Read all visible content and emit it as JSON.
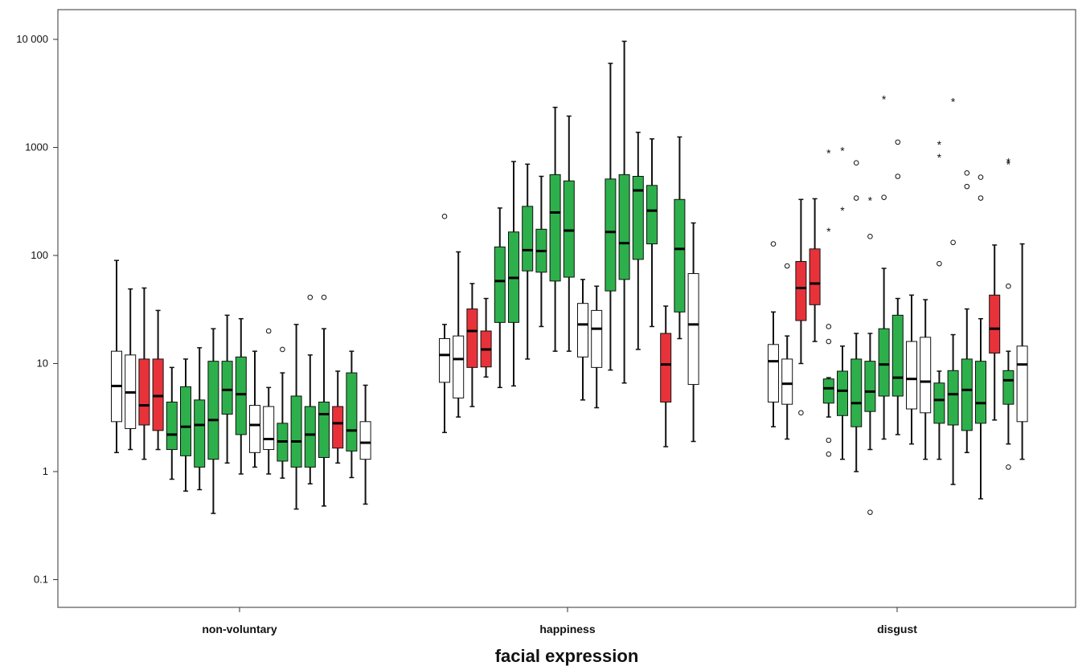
{
  "chart_data": {
    "type": "box",
    "xlabel": "facial expression",
    "ylabel": "",
    "yscale": "log",
    "ylim": [
      0.06,
      13000
    ],
    "y_ticks": [
      "0.1",
      "1",
      "10",
      "100",
      "1000",
      "10 000"
    ],
    "y_tick_values": [
      0.1,
      1,
      10,
      100,
      1000,
      10000
    ],
    "categories": [
      "non-voluntary",
      "happiness",
      "disgust"
    ],
    "colors": {
      "white": "#ffffff",
      "red": "#e8323a",
      "green": "#2db04b"
    },
    "groups": [
      {
        "category": "non-voluntary",
        "boxes": [
          {
            "color": "white",
            "min": 1.5,
            "q1": 2.9,
            "median": 6.2,
            "q3": 13,
            "max": 90,
            "outliers": []
          },
          {
            "color": "white",
            "min": 1.6,
            "q1": 2.5,
            "median": 5.4,
            "q3": 12,
            "max": 49,
            "outliers": []
          },
          {
            "color": "red",
            "min": 1.3,
            "q1": 2.7,
            "median": 4.1,
            "q3": 11,
            "max": 50,
            "outliers": []
          },
          {
            "color": "red",
            "min": 1.6,
            "q1": 2.4,
            "median": 5.0,
            "q3": 11,
            "max": 31,
            "outliers": []
          },
          {
            "color": "green",
            "min": 0.85,
            "q1": 1.6,
            "median": 2.2,
            "q3": 4.4,
            "max": 9.2,
            "outliers": []
          },
          {
            "color": "green",
            "min": 0.66,
            "q1": 1.4,
            "median": 2.6,
            "q3": 6.1,
            "max": 11,
            "outliers": []
          },
          {
            "color": "green",
            "min": 0.68,
            "q1": 1.1,
            "median": 2.7,
            "q3": 4.6,
            "max": 14,
            "outliers": []
          },
          {
            "color": "green",
            "min": 0.41,
            "q1": 1.3,
            "median": 3.0,
            "q3": 10.5,
            "max": 21,
            "outliers": []
          },
          {
            "color": "green",
            "min": 1.2,
            "q1": 3.4,
            "median": 5.7,
            "q3": 10.5,
            "max": 28,
            "outliers": []
          },
          {
            "color": "green",
            "min": 0.95,
            "q1": 2.2,
            "median": 5.2,
            "q3": 11.5,
            "max": 26,
            "outliers": []
          },
          {
            "color": "white",
            "min": 1.1,
            "q1": 1.5,
            "median": 2.7,
            "q3": 4.1,
            "max": 13,
            "outliers": []
          },
          {
            "color": "white",
            "min": 0.95,
            "q1": 1.6,
            "median": 2.0,
            "q3": 4.0,
            "max": 6.0,
            "outliers": [
              20
            ]
          },
          {
            "color": "green",
            "min": 0.87,
            "q1": 1.25,
            "median": 1.9,
            "q3": 2.8,
            "max": 8.2,
            "outliers": [
              13.5
            ]
          },
          {
            "color": "green",
            "min": 0.45,
            "q1": 1.1,
            "median": 1.9,
            "q3": 5.0,
            "max": 23,
            "outliers": []
          },
          {
            "color": "green",
            "min": 0.77,
            "q1": 1.1,
            "median": 2.2,
            "q3": 4.0,
            "max": 12,
            "outliers": [
              41
            ]
          },
          {
            "color": "green",
            "min": 0.48,
            "q1": 1.35,
            "median": 3.4,
            "q3": 4.4,
            "max": 21,
            "outliers": [
              41
            ]
          },
          {
            "color": "red",
            "min": 1.2,
            "q1": 1.65,
            "median": 2.8,
            "q3": 4.0,
            "max": 8.5,
            "outliers": []
          },
          {
            "color": "green",
            "min": 0.88,
            "q1": 1.55,
            "median": 2.4,
            "q3": 8.2,
            "max": 13,
            "outliers": []
          },
          {
            "color": "white",
            "min": 0.5,
            "q1": 1.3,
            "median": 1.85,
            "q3": 2.9,
            "max": 6.3,
            "outliers": []
          }
        ]
      },
      {
        "category": "happiness",
        "boxes": [
          {
            "color": "white",
            "min": 2.3,
            "q1": 6.7,
            "median": 12,
            "q3": 17,
            "max": 23,
            "outliers": [
              230
            ]
          },
          {
            "color": "white",
            "min": 3.2,
            "q1": 4.8,
            "median": 11,
            "q3": 18,
            "max": 108,
            "outliers": []
          },
          {
            "color": "red",
            "min": 4.0,
            "q1": 9.2,
            "median": 20,
            "q3": 32,
            "max": 55,
            "outliers": []
          },
          {
            "color": "red",
            "min": 7.5,
            "q1": 9.3,
            "median": 13.5,
            "q3": 20,
            "max": 40,
            "outliers": []
          },
          {
            "color": "green",
            "min": 6.0,
            "q1": 24,
            "median": 58,
            "q3": 120,
            "max": 275,
            "outliers": []
          },
          {
            "color": "green",
            "min": 6.2,
            "q1": 24,
            "median": 62,
            "q3": 165,
            "max": 740,
            "outliers": []
          },
          {
            "color": "green",
            "min": 11,
            "q1": 72,
            "median": 112,
            "q3": 285,
            "max": 700,
            "outliers": []
          },
          {
            "color": "green",
            "min": 22,
            "q1": 70,
            "median": 110,
            "q3": 175,
            "max": 540,
            "outliers": []
          },
          {
            "color": "green",
            "min": 13,
            "q1": 58,
            "median": 250,
            "q3": 560,
            "max": 2350,
            "outliers": []
          },
          {
            "color": "green",
            "min": 13,
            "q1": 63,
            "median": 170,
            "q3": 490,
            "max": 1950,
            "outliers": []
          },
          {
            "color": "white",
            "min": 4.6,
            "q1": 11.5,
            "median": 23,
            "q3": 36,
            "max": 60,
            "outliers": []
          },
          {
            "color": "white",
            "min": 3.9,
            "q1": 9.2,
            "median": 21,
            "q3": 31,
            "max": 52,
            "outliers": []
          },
          {
            "color": "green",
            "min": 8.7,
            "q1": 47,
            "median": 165,
            "q3": 510,
            "max": 6000,
            "outliers": []
          },
          {
            "color": "green",
            "min": 6.6,
            "q1": 60,
            "median": 130,
            "q3": 560,
            "max": 9600,
            "outliers": []
          },
          {
            "color": "green",
            "min": 13.5,
            "q1": 92,
            "median": 400,
            "q3": 540,
            "max": 1380,
            "outliers": []
          },
          {
            "color": "green",
            "min": 22,
            "q1": 128,
            "median": 260,
            "q3": 445,
            "max": 1200,
            "outliers": []
          },
          {
            "color": "red",
            "min": 1.7,
            "q1": 4.4,
            "median": 9.8,
            "q3": 19,
            "max": 34,
            "outliers": []
          },
          {
            "color": "green",
            "min": 17,
            "q1": 30,
            "median": 115,
            "q3": 330,
            "max": 1250,
            "outliers": []
          },
          {
            "color": "white",
            "min": 1.9,
            "q1": 6.4,
            "median": 23,
            "q3": 68,
            "max": 200,
            "outliers": []
          }
        ]
      },
      {
        "category": "disgust",
        "boxes": [
          {
            "color": "white",
            "min": 2.6,
            "q1": 4.4,
            "median": 10.5,
            "q3": 15,
            "max": 30,
            "outliers": [
              128
            ]
          },
          {
            "color": "white",
            "min": 2.0,
            "q1": 4.2,
            "median": 6.5,
            "q3": 11,
            "max": 18,
            "outliers": [
              80
            ]
          },
          {
            "color": "red",
            "min": 10,
            "q1": 25,
            "median": 50,
            "q3": 88,
            "max": 330,
            "outliers": [
              3.5
            ]
          },
          {
            "color": "red",
            "min": 16,
            "q1": 35,
            "median": 55,
            "q3": 115,
            "max": 335,
            "outliers": []
          },
          {
            "color": "green",
            "min": 3.2,
            "q1": 4.3,
            "median": 5.9,
            "q3": 7.2,
            "max": 7.4,
            "outliers": [
              1.95,
              1.45,
              16,
              22
            ],
            "extremes": [
              170,
              900
            ]
          },
          {
            "color": "green",
            "min": 1.3,
            "q1": 3.3,
            "median": 5.6,
            "q3": 8.5,
            "max": 14.5,
            "outliers": [],
            "extremes": [
              265,
              950
            ]
          },
          {
            "color": "green",
            "min": 1.0,
            "q1": 2.6,
            "median": 4.3,
            "q3": 11,
            "max": 19,
            "outliers": [
              340,
              720
            ]
          },
          {
            "color": "green",
            "min": 1.6,
            "q1": 3.6,
            "median": 5.5,
            "q3": 10.5,
            "max": 19,
            "outliers": [
              0.42,
              150
            ],
            "extremes": [
              330
            ]
          },
          {
            "color": "green",
            "min": 2.0,
            "q1": 5.0,
            "median": 9.8,
            "q3": 21,
            "max": 76,
            "outliers": [
              345
            ],
            "extremes": [
              2850
            ]
          },
          {
            "color": "green",
            "min": 2.2,
            "q1": 5.0,
            "median": 7.4,
            "q3": 28,
            "max": 40,
            "outliers": [
              540,
              1120
            ]
          },
          {
            "color": "white",
            "min": 1.8,
            "q1": 3.8,
            "median": 7.2,
            "q3": 16,
            "max": 43,
            "outliers": []
          },
          {
            "color": "white",
            "min": 1.3,
            "q1": 3.5,
            "median": 6.8,
            "q3": 17.5,
            "max": 39,
            "outliers": []
          },
          {
            "color": "green",
            "min": 1.3,
            "q1": 2.8,
            "median": 4.6,
            "q3": 6.6,
            "max": 8.5,
            "outliers": [
              84
            ],
            "extremes": [
              820,
              1080
            ]
          },
          {
            "color": "green",
            "min": 0.76,
            "q1": 2.7,
            "median": 5.2,
            "q3": 8.6,
            "max": 18.5,
            "outliers": [
              132
            ],
            "extremes": [
              2700
            ]
          },
          {
            "color": "green",
            "min": 1.5,
            "q1": 2.4,
            "median": 5.7,
            "q3": 11,
            "max": 32,
            "outliers": [
              435,
              580
            ]
          },
          {
            "color": "green",
            "min": 0.56,
            "q1": 2.8,
            "median": 4.3,
            "q3": 10.5,
            "max": 26,
            "outliers": [
              340,
              530
            ]
          },
          {
            "color": "red",
            "min": 3.0,
            "q1": 12.5,
            "median": 21,
            "q3": 43,
            "max": 125,
            "outliers": []
          },
          {
            "color": "green",
            "min": 1.8,
            "q1": 4.2,
            "median": 7.0,
            "q3": 8.6,
            "max": 13,
            "outliers": [
              1.1,
              52
            ],
            "extremes": [
              710,
              750
            ]
          },
          {
            "color": "white",
            "min": 1.3,
            "q1": 2.9,
            "median": 9.8,
            "q3": 14.5,
            "max": 128,
            "outliers": []
          }
        ]
      }
    ]
  }
}
